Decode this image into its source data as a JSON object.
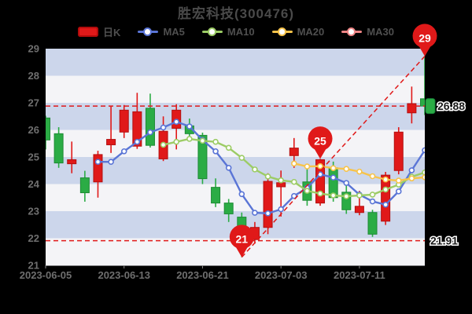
{
  "title": "胜宏科技(300476)",
  "legend": {
    "items": [
      {
        "label": "日K",
        "color": "#e01919",
        "icon": "candlestick"
      },
      {
        "label": "MA5",
        "color": "#5a75d6",
        "icon": "line"
      },
      {
        "label": "MA10",
        "color": "#9ccc65",
        "icon": "line"
      },
      {
        "label": "MA20",
        "color": "#f7c34a",
        "icon": "line"
      },
      {
        "label": "MA30",
        "color": "#ee8585",
        "icon": "line"
      }
    ]
  },
  "axes": {
    "y_min": 21,
    "y_max": 29,
    "y_ticks": [
      29,
      28,
      27,
      26,
      25,
      24,
      23,
      22,
      21
    ],
    "x_ticks": [
      {
        "label": "2023-06-05",
        "index": 0
      },
      {
        "label": "2023-06-13",
        "index": 6
      },
      {
        "label": "2023-06-21",
        "index": 12
      },
      {
        "label": "2023-07-03",
        "index": 18
      },
      {
        "label": "2023-07-11",
        "index": 24
      }
    ],
    "label_color": "#6f6f6f"
  },
  "chart_data": {
    "type": "candlestick",
    "title": "胜宏科技(300476)",
    "up_color": "#e01919",
    "down_color": "#2bac45",
    "band_colors": [
      "#ccd6eb",
      "#f4f4f7"
    ],
    "candles_format": [
      "open",
      "close",
      "low",
      "high"
    ],
    "candles": [
      [
        26.44,
        25.63,
        25.28,
        26.52
      ],
      [
        25.86,
        24.78,
        24.6,
        26.1
      ],
      [
        24.75,
        24.9,
        24.4,
        25.57
      ],
      [
        24.23,
        23.68,
        23.35,
        24.49
      ],
      [
        24.08,
        25.09,
        23.5,
        25.23
      ],
      [
        25.45,
        25.65,
        25.15,
        26.88
      ],
      [
        25.92,
        26.73,
        25.7,
        26.92
      ],
      [
        25.4,
        26.67,
        25.3,
        27.37
      ],
      [
        26.8,
        25.43,
        25.35,
        27.34
      ],
      [
        24.93,
        25.95,
        24.85,
        26.5
      ],
      [
        26.06,
        26.73,
        25.28,
        26.95
      ],
      [
        26.15,
        25.86,
        25.57,
        26.42
      ],
      [
        25.8,
        24.2,
        24.0,
        25.9
      ],
      [
        23.88,
        23.3,
        23.15,
        24.21
      ],
      [
        23.3,
        22.9,
        22.6,
        23.45
      ],
      [
        22.78,
        21.91,
        21.3,
        22.95
      ],
      [
        21.95,
        22.4,
        21.8,
        22.6
      ],
      [
        22.4,
        24.1,
        22.15,
        24.4
      ],
      [
        23.9,
        24.05,
        22.8,
        24.5
      ],
      [
        25.05,
        25.33,
        24.6,
        25.7
      ],
      [
        24.08,
        23.4,
        23.2,
        24.6
      ],
      [
        23.3,
        24.9,
        23.2,
        24.93
      ],
      [
        24.6,
        23.5,
        23.35,
        24.83
      ],
      [
        23.7,
        23.05,
        22.9,
        24.1
      ],
      [
        22.95,
        23.18,
        22.85,
        23.75
      ],
      [
        22.95,
        22.15,
        22.05,
        23.05
      ],
      [
        22.63,
        24.33,
        22.49,
        24.45
      ],
      [
        24.5,
        25.92,
        24.36,
        26.1
      ],
      [
        26.63,
        26.97,
        26.24,
        27.6
      ],
      [
        27.15,
        26.88,
        26.55,
        28.72
      ]
    ],
    "series": [
      {
        "name": "MA5",
        "color": "#5a75d6",
        "start_index": 4,
        "values": [
          24.82,
          24.82,
          25.21,
          25.56,
          25.91,
          26.09,
          26.3,
          26.13,
          25.63,
          25.21,
          24.6,
          23.63,
          22.94,
          22.92,
          23.07,
          23.56,
          23.86,
          24.36,
          24.24,
          24.04,
          23.61,
          23.36,
          23.24,
          23.73,
          24.51,
          25.25
        ]
      },
      {
        "name": "MA10",
        "color": "#9ccc65",
        "start_index": 9,
        "values": [
          25.45,
          25.56,
          25.67,
          25.6,
          25.56,
          25.34,
          24.97,
          24.54,
          24.28,
          24.14,
          24.08,
          23.75,
          23.65,
          23.58,
          23.55,
          23.58,
          23.61,
          23.8,
          23.98,
          24.27,
          24.43
        ]
      },
      {
        "name": "MA20",
        "color": "#f7c34a",
        "start_index": 19,
        "values": [
          24.76,
          24.65,
          24.66,
          24.59,
          24.56,
          24.46,
          24.29,
          24.17,
          24.13,
          24.21,
          24.25
        ]
      }
    ],
    "markers": [
      {
        "label": "21",
        "index": 15,
        "anchor": "low",
        "value": 21.3
      },
      {
        "label": "25",
        "index": 21,
        "anchor": "high",
        "value": 24.93
      },
      {
        "label": "29",
        "index": 29,
        "anchor": "high",
        "value": 28.72
      }
    ],
    "marker_color": "#e01919",
    "trend_line": {
      "from_marker": 0,
      "to_marker": 2
    },
    "ref_lines": [
      26.88,
      21.91
    ],
    "ref_line_color": "#e01919",
    "price_tag": {
      "value": "26.88",
      "bg": "#2bac45"
    },
    "min_label": "21.91"
  }
}
